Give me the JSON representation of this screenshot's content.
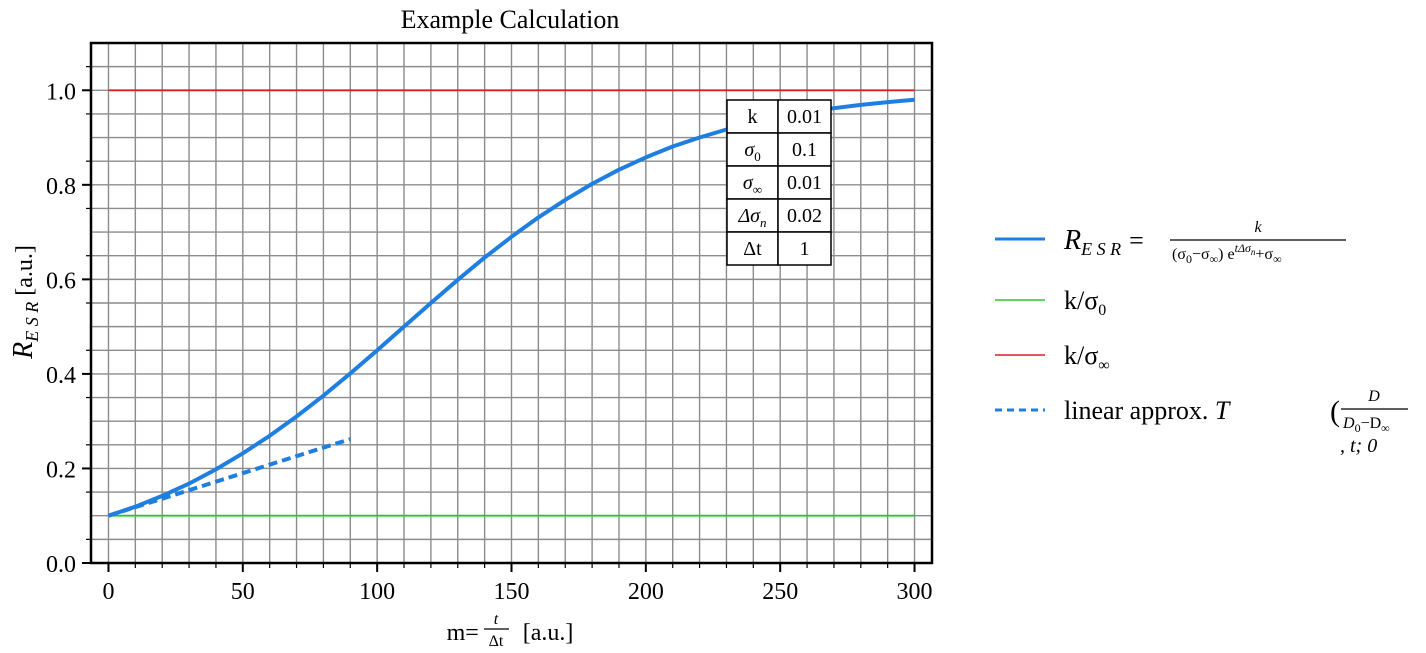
{
  "chart_data": {
    "type": "line",
    "title": "Example Calculation",
    "xlabel": {
      "prefix": "m=",
      "frac_num": "t",
      "frac_den": "Δt",
      "suffix": "[a.u.]"
    },
    "ylabel": {
      "main": "R",
      "sub": "E S R",
      "unit": "[a.u.]"
    },
    "xlim": [
      -6.5,
      306.5
    ],
    "ylim": [
      0.0,
      1.1
    ],
    "xticks": [
      0,
      50,
      100,
      150,
      200,
      250,
      300
    ],
    "xtick_labels": [
      "0",
      "50",
      "100",
      "150",
      "200",
      "250",
      "300"
    ],
    "yticks": [
      0.0,
      0.2,
      0.4,
      0.6,
      0.8,
      1.0
    ],
    "ytick_labels": [
      "0.0",
      "0.2",
      "0.4",
      "0.6",
      "0.8",
      "1.0"
    ],
    "grid": true,
    "legend_position": "outside right",
    "params": {
      "k": 0.01,
      "sigma0": 0.1,
      "sigmaInf": 0.01,
      "dSigma": 0.02,
      "dt": 1
    },
    "series": [
      {
        "name_parts": {
          "lhs": "R",
          "lhs_sub": "E S R",
          "eq": "=",
          "num": "k",
          "den_a": "(σ",
          "den_b": "0",
          "den_c": "−σ",
          "den_d": "∞",
          "den_e": ") e",
          "den_exp": "tΔσ",
          "den_exp_sub": "n",
          "den_f": "+σ",
          "den_g": "∞"
        },
        "style": "solid",
        "color": "#1f7fe0",
        "x": [
          0,
          10,
          20,
          30,
          40,
          50,
          60,
          70,
          80,
          90,
          100,
          110,
          120,
          130,
          140,
          150,
          160,
          170,
          180,
          190,
          200,
          210,
          220,
          230,
          240,
          250,
          260,
          270,
          280,
          290,
          300
        ],
        "y": [
          0.1,
          0.119,
          0.142,
          0.168,
          0.198,
          0.232,
          0.269,
          0.31,
          0.354,
          0.401,
          0.45,
          0.5,
          0.55,
          0.599,
          0.646,
          0.69,
          0.731,
          0.768,
          0.802,
          0.832,
          0.858,
          0.881,
          0.9,
          0.917,
          0.932,
          0.944,
          0.954,
          0.962,
          0.969,
          0.975,
          0.98
        ]
      },
      {
        "name_parts": {
          "a": "k/σ",
          "b": "0"
        },
        "style": "solid",
        "color": "#2ec52e",
        "x": [
          0,
          300
        ],
        "y": [
          0.1,
          0.1
        ]
      },
      {
        "name_parts": {
          "a": "k/σ",
          "b": "∞"
        },
        "style": "solid",
        "color": "#d62020",
        "x": [
          0,
          300
        ],
        "y": [
          1.0,
          1.0
        ]
      },
      {
        "name_parts": {
          "a": "linear approx. ",
          "T": "T",
          "num": "D",
          "den_a": "D",
          "den_b": "0",
          "den_c": "−D",
          "den_d": "∞",
          "tail": ", t; 0"
        },
        "style": "dashed",
        "color": "#1f7fe0",
        "x": [
          0,
          90
        ],
        "y": [
          0.1,
          0.262
        ]
      }
    ],
    "table": [
      {
        "label": "k",
        "label_sub": "",
        "italic": false,
        "value": "0.01"
      },
      {
        "label": "σ",
        "label_sub": "0",
        "italic": true,
        "value": "0.1"
      },
      {
        "label": "σ",
        "label_sub": "∞",
        "italic": true,
        "value": "0.01"
      },
      {
        "label": "Δσ",
        "label_sub": "n",
        "italic": true,
        "value": "0.02"
      },
      {
        "label": "Δt",
        "label_sub": "",
        "italic": false,
        "value": "1"
      }
    ]
  }
}
